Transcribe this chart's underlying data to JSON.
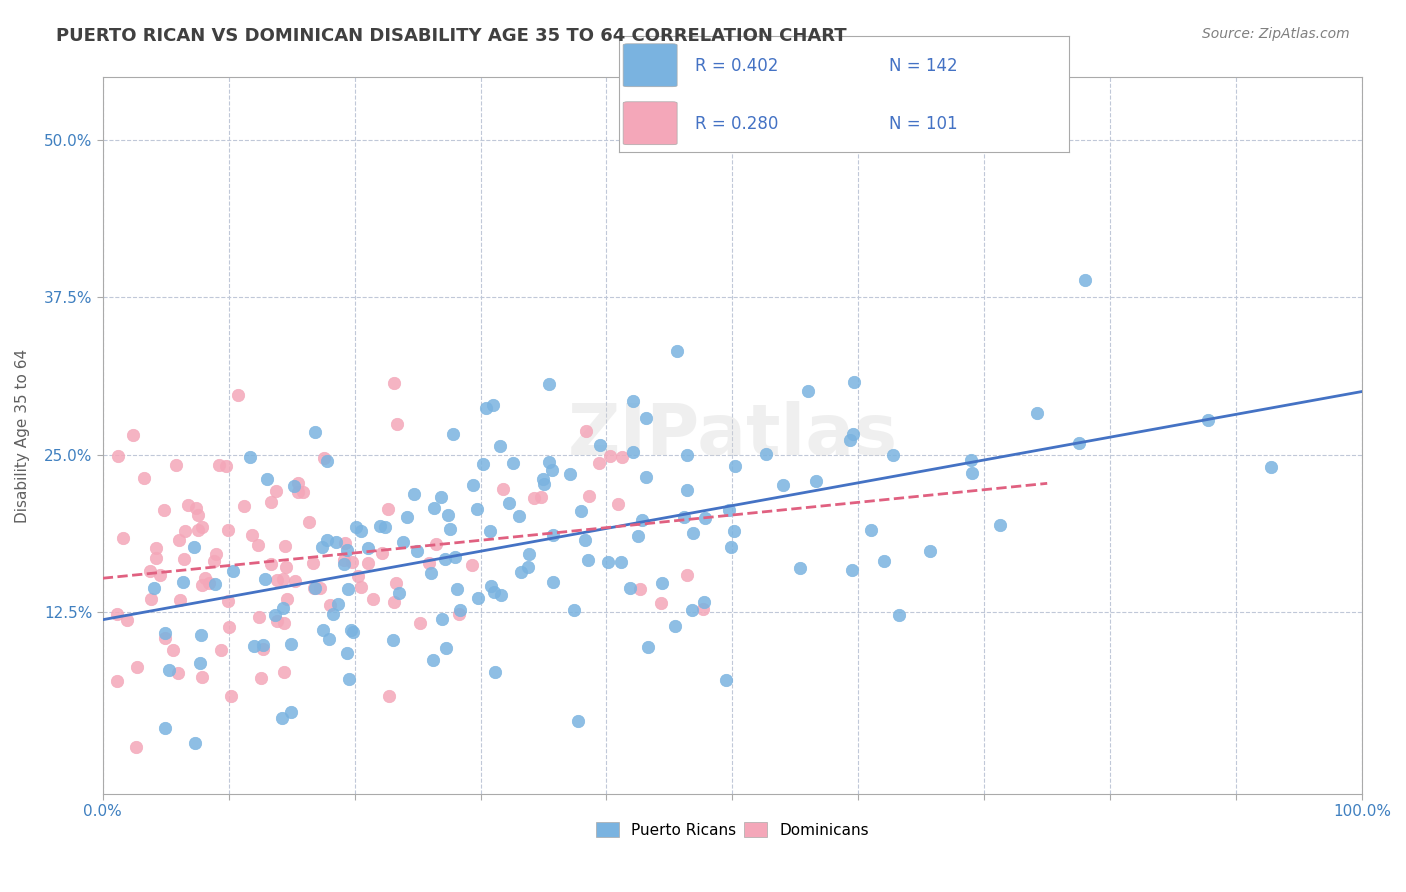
{
  "title": "PUERTO RICAN VS DOMINICAN DISABILITY AGE 35 TO 64 CORRELATION CHART",
  "source": "Source: ZipAtlas.com",
  "xlabel": "",
  "ylabel": "Disability Age 35 to 64",
  "xlim": [
    0,
    1
  ],
  "ylim": [
    -0.02,
    0.55
  ],
  "xticks": [
    0.0,
    0.1,
    0.2,
    0.3,
    0.4,
    0.5,
    0.6,
    0.7,
    0.8,
    0.9,
    1.0
  ],
  "xticklabels": [
    "0.0%",
    "",
    "",
    "",
    "",
    "",
    "",
    "",
    "",
    "",
    "100.0%"
  ],
  "yticks": [
    0.125,
    0.25,
    0.375,
    0.5
  ],
  "yticklabels": [
    "12.5%",
    "25.0%",
    "37.5%",
    "50.0%"
  ],
  "pr_R": 0.402,
  "pr_N": 142,
  "dom_R": 0.28,
  "dom_N": 101,
  "pr_color": "#7ab3e0",
  "dom_color": "#f4a7b9",
  "pr_line_color": "#4472c4",
  "dom_line_color": "#e06080",
  "legend_box_color": "#e8f0f8",
  "background_color": "#ffffff",
  "grid_color": "#c0c8d8",
  "watermark": "ZIPatlas",
  "pr_seed": 42,
  "dom_seed": 77,
  "title_color": "#404040",
  "axis_label_color": "#606060",
  "tick_color": "#4080c0"
}
